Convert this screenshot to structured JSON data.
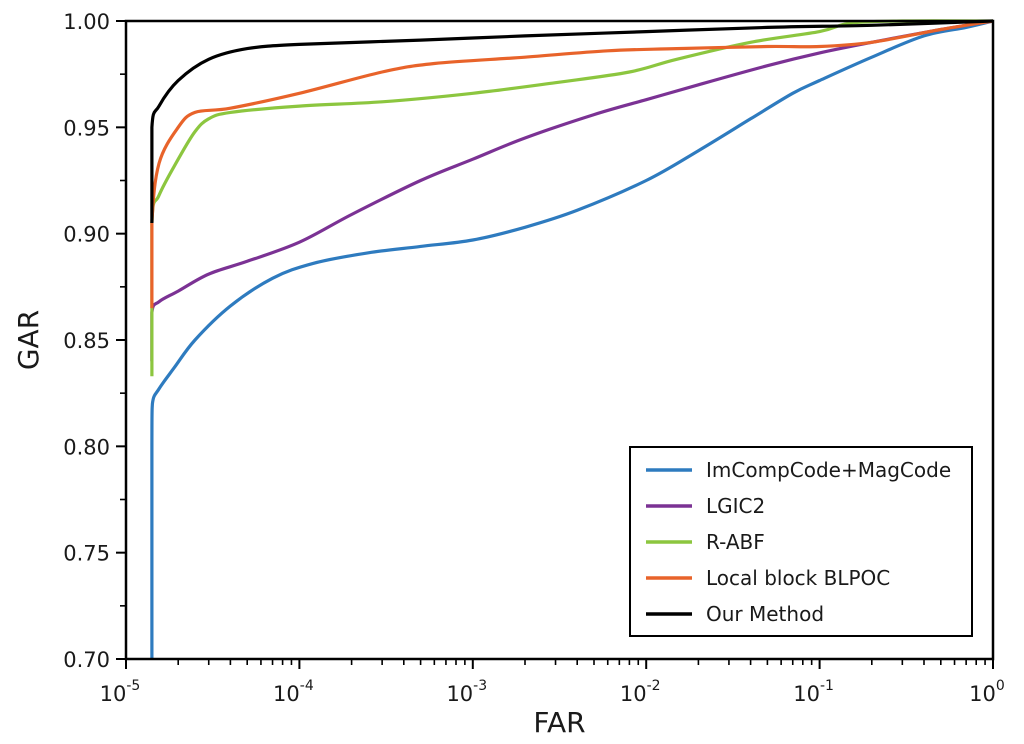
{
  "chart_data": {
    "type": "line",
    "xlabel": "FAR",
    "ylabel": "GAR",
    "xscale": "log",
    "xlim": [
      1e-05,
      1
    ],
    "ylim": [
      0.7,
      1.0
    ],
    "x_ticks": [
      {
        "value": 1e-05,
        "base": "10",
        "exp": "-5"
      },
      {
        "value": 0.0001,
        "base": "10",
        "exp": "-4"
      },
      {
        "value": 0.001,
        "base": "10",
        "exp": "-3"
      },
      {
        "value": 0.01,
        "base": "10",
        "exp": "-2"
      },
      {
        "value": 0.1,
        "base": "10",
        "exp": "-1"
      },
      {
        "value": 1,
        "base": "10",
        "exp": "0"
      }
    ],
    "y_ticks": [
      {
        "value": 0.7,
        "label": "0.70"
      },
      {
        "value": 0.75,
        "label": "0.75"
      },
      {
        "value": 0.8,
        "label": "0.80"
      },
      {
        "value": 0.85,
        "label": "0.85"
      },
      {
        "value": 0.9,
        "label": "0.90"
      },
      {
        "value": 0.95,
        "label": "0.95"
      },
      {
        "value": 1.0,
        "label": "1.00"
      }
    ],
    "grid": false,
    "legend_position": "bottom-right",
    "series": [
      {
        "name": "ImCompCode+MagCode",
        "color": "#2e7bbf",
        "points": [
          [
            1.41e-05,
            0.7
          ],
          [
            1.41e-05,
            0.8
          ],
          [
            1.42e-05,
            0.82
          ],
          [
            1.55e-05,
            0.827
          ],
          [
            1.9e-05,
            0.837
          ],
          [
            2.5e-05,
            0.85
          ],
          [
            4e-05,
            0.866
          ],
          [
            7e-05,
            0.879
          ],
          [
            0.00012,
            0.886
          ],
          [
            0.00025,
            0.891
          ],
          [
            0.0005,
            0.894
          ],
          [
            0.001,
            0.897
          ],
          [
            0.002,
            0.903
          ],
          [
            0.004,
            0.911
          ],
          [
            0.01,
            0.925
          ],
          [
            0.02,
            0.939
          ],
          [
            0.04,
            0.954
          ],
          [
            0.07,
            0.966
          ],
          [
            0.1,
            0.972
          ],
          [
            0.2,
            0.983
          ],
          [
            0.4,
            0.993
          ],
          [
            0.7,
            0.997
          ],
          [
            1.0,
            1.0
          ]
        ]
      },
      {
        "name": "LGIC2",
        "color": "#7b3294",
        "points": [
          [
            1.41e-05,
            0.84
          ],
          [
            1.41e-05,
            0.863
          ],
          [
            1.55e-05,
            0.868
          ],
          [
            2e-05,
            0.873
          ],
          [
            3e-05,
            0.881
          ],
          [
            5e-05,
            0.887
          ],
          [
            0.0001,
            0.896
          ],
          [
            0.0002,
            0.909
          ],
          [
            0.0005,
            0.925
          ],
          [
            0.001,
            0.935
          ],
          [
            0.002,
            0.945
          ],
          [
            0.005,
            0.956
          ],
          [
            0.01,
            0.963
          ],
          [
            0.02,
            0.97
          ],
          [
            0.05,
            0.979
          ],
          [
            0.1,
            0.985
          ],
          [
            0.2,
            0.99
          ],
          [
            0.5,
            0.996
          ],
          [
            1.0,
            1.0
          ]
        ]
      },
      {
        "name": "R-ABF",
        "color": "#8cc63f",
        "points": [
          [
            1.41e-05,
            0.833
          ],
          [
            1.41e-05,
            0.905
          ],
          [
            1.55e-05,
            0.918
          ],
          [
            2e-05,
            0.935
          ],
          [
            2.5e-05,
            0.948
          ],
          [
            3e-05,
            0.954
          ],
          [
            4e-05,
            0.957
          ],
          [
            0.0001,
            0.96
          ],
          [
            0.0003,
            0.962
          ],
          [
            0.001,
            0.966
          ],
          [
            0.003,
            0.971
          ],
          [
            0.008,
            0.976
          ],
          [
            0.015,
            0.982
          ],
          [
            0.04,
            0.99
          ],
          [
            0.1,
            0.995
          ],
          [
            0.15,
            0.999
          ],
          [
            0.3,
            1.0
          ],
          [
            1.0,
            1.0
          ]
        ]
      },
      {
        "name": "Local block BLPOC",
        "color": "#e8632a",
        "points": [
          [
            1.41e-05,
            0.865
          ],
          [
            1.41e-05,
            0.905
          ],
          [
            1.55e-05,
            0.933
          ],
          [
            2e-05,
            0.95
          ],
          [
            2.5e-05,
            0.957
          ],
          [
            4e-05,
            0.959
          ],
          [
            0.0001,
            0.966
          ],
          [
            0.0003,
            0.976
          ],
          [
            0.0006,
            0.98
          ],
          [
            0.002,
            0.983
          ],
          [
            0.006,
            0.986
          ],
          [
            0.015,
            0.987
          ],
          [
            0.05,
            0.988
          ],
          [
            0.1,
            0.988
          ],
          [
            0.2,
            0.99
          ],
          [
            0.5,
            0.996
          ],
          [
            1.0,
            1.0
          ]
        ]
      },
      {
        "name": "Our Method",
        "color": "#000000",
        "points": [
          [
            1.41e-05,
            0.905
          ],
          [
            1.41e-05,
            0.95
          ],
          [
            1.55e-05,
            0.96
          ],
          [
            2e-05,
            0.972
          ],
          [
            3e-05,
            0.982
          ],
          [
            5e-05,
            0.987
          ],
          [
            0.0001,
            0.989
          ],
          [
            0.0005,
            0.991
          ],
          [
            0.002,
            0.993
          ],
          [
            0.01,
            0.995
          ],
          [
            0.05,
            0.997
          ],
          [
            0.2,
            0.998
          ],
          [
            1.0,
            1.0
          ]
        ]
      }
    ]
  }
}
